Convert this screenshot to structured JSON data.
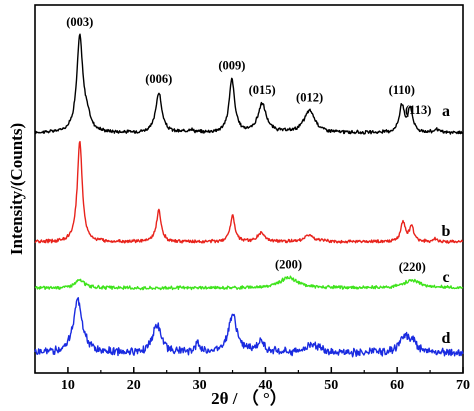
{
  "chart_data": {
    "type": "line",
    "xlabel": "2θ / （ °）",
    "ylabel": "Intensity/(Counts)",
    "xlim": [
      5,
      70
    ],
    "xticks": [
      10,
      20,
      30,
      40,
      50,
      60,
      70
    ],
    "y_tick_labels_shown": false,
    "grid": false,
    "legend": "labels at right end of each trace",
    "series": [
      {
        "name": "a",
        "color": "#000000",
        "baseline": 0.55,
        "noise": 0.05,
        "peaks": [
          {
            "x": 11.8,
            "height": 3.65,
            "width": 0.55
          },
          {
            "x": 12.9,
            "height": 0.5,
            "width": 0.6
          },
          {
            "x": 23.8,
            "height": 1.55,
            "width": 0.55
          },
          {
            "x": 28.6,
            "height": 0.12,
            "width": 0.5
          },
          {
            "x": 34.9,
            "height": 2.05,
            "width": 0.5
          },
          {
            "x": 39.5,
            "height": 1.1,
            "width": 0.75
          },
          {
            "x": 46.7,
            "height": 0.85,
            "width": 1.0
          },
          {
            "x": 60.7,
            "height": 1.05,
            "width": 0.45
          },
          {
            "x": 62.0,
            "height": 0.9,
            "width": 0.45
          },
          {
            "x": 66.0,
            "height": 0.12,
            "width": 0.5
          }
        ]
      },
      {
        "name": "b",
        "color": "#e8231c",
        "baseline": 0.45,
        "noise": 0.05,
        "peaks": [
          {
            "x": 11.8,
            "height": 3.9,
            "width": 0.45
          },
          {
            "x": 23.8,
            "height": 1.2,
            "width": 0.45
          },
          {
            "x": 35.0,
            "height": 1.0,
            "width": 0.45
          },
          {
            "x": 39.3,
            "height": 0.35,
            "width": 0.6
          },
          {
            "x": 46.6,
            "height": 0.25,
            "width": 1.0
          },
          {
            "x": 60.9,
            "height": 0.75,
            "width": 0.4
          },
          {
            "x": 62.2,
            "height": 0.6,
            "width": 0.4
          },
          {
            "x": 65.8,
            "height": 0.1,
            "width": 0.5
          }
        ]
      },
      {
        "name": "c",
        "color": "#3fe31c",
        "baseline": 0.5,
        "noise": 0.05,
        "peaks": [
          {
            "x": 11.8,
            "height": 0.3,
            "width": 0.9
          },
          {
            "x": 43.5,
            "height": 0.4,
            "width": 1.6
          },
          {
            "x": 62.3,
            "height": 0.3,
            "width": 1.5
          }
        ]
      },
      {
        "name": "d",
        "color": "#1a2be0",
        "baseline": 0.6,
        "noise": 0.12,
        "peaks": [
          {
            "x": 11.5,
            "height": 2.05,
            "width": 0.8
          },
          {
            "x": 23.5,
            "height": 1.05,
            "width": 0.8
          },
          {
            "x": 29.7,
            "height": 0.35,
            "width": 0.4
          },
          {
            "x": 35.0,
            "height": 1.45,
            "width": 0.8
          },
          {
            "x": 39.3,
            "height": 0.4,
            "width": 0.7
          },
          {
            "x": 47.2,
            "height": 0.35,
            "width": 1.2
          },
          {
            "x": 61.2,
            "height": 0.65,
            "width": 0.9
          },
          {
            "x": 62.5,
            "height": 0.35,
            "width": 0.6
          }
        ]
      }
    ],
    "annotations": [
      {
        "text": "(003)",
        "x": 11.8,
        "series": "a"
      },
      {
        "text": "(006)",
        "x": 23.8,
        "series": "a"
      },
      {
        "text": "(009)",
        "x": 34.9,
        "series": "a"
      },
      {
        "text": "(015)",
        "x": 39.5,
        "series": "a"
      },
      {
        "text": "(012)",
        "x": 46.7,
        "series": "a"
      },
      {
        "text": "(110)",
        "x": 60.7,
        "series": "a"
      },
      {
        "text": "(113)",
        "x": 63.2,
        "series": "a"
      },
      {
        "text": "(200)",
        "x": 43.5,
        "series": "c"
      },
      {
        "text": "(220)",
        "x": 62.3,
        "series": "c"
      }
    ]
  }
}
